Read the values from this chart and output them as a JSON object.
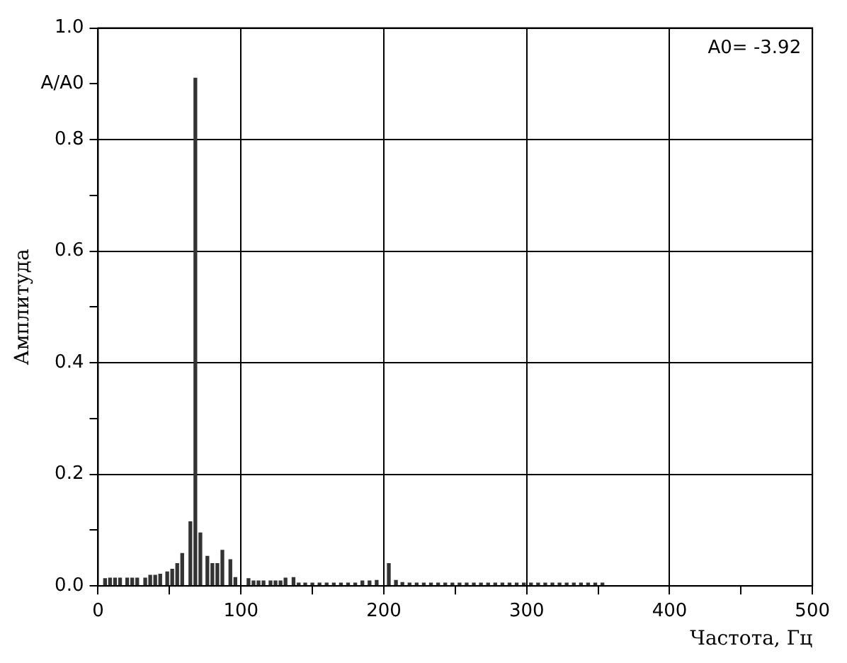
{
  "chart_data": {
    "type": "bar",
    "xlabel": "Частота, Гц",
    "ylabel": "Амплитуда",
    "annotations": [
      "A0= -3.92"
    ],
    "x": [
      4.9,
      8.4,
      11.9,
      15.4,
      20.4,
      23.9,
      27.4,
      33,
      36.5,
      40,
      43.5,
      48.4,
      51.9,
      55.4,
      58.9,
      64.6,
      68.1,
      71.6,
      76.5,
      80,
      83.5,
      87,
      92.6,
      96.1,
      105.3,
      108.8,
      112.3,
      115.8,
      120.7,
      124.2,
      127.7,
      131.2,
      136.8,
      140.4,
      145,
      150,
      155,
      160,
      165,
      170,
      175,
      180,
      185,
      190,
      195,
      203.5,
      208.5,
      213,
      218,
      223,
      228,
      233,
      238,
      243,
      248,
      253,
      258,
      263,
      268,
      273,
      278,
      283,
      288,
      293,
      298,
      303,
      308,
      313,
      318,
      323,
      328,
      333,
      338,
      343,
      348,
      353
    ],
    "series": [
      {
        "color": "#333333",
        "values": [
          0.013,
          0.014,
          0.014,
          0.014,
          0.014,
          0.014,
          0.014,
          0.014,
          0.019,
          0.019,
          0.021,
          0.025,
          0.03,
          0.04,
          0.058,
          0.115,
          0.91,
          0.095,
          0.053,
          0.04,
          0.04,
          0.064,
          0.047,
          0.015,
          0.013,
          0.009,
          0.009,
          0.009,
          0.009,
          0.009,
          0.009,
          0.014,
          0.015,
          0.005,
          0.005,
          0.005,
          0.005,
          0.005,
          0.005,
          0.005,
          0.005,
          0.005,
          0.009,
          0.009,
          0.01,
          0.04,
          0.01,
          0.006,
          0.005,
          0.005,
          0.005,
          0.005,
          0.005,
          0.005,
          0.005,
          0.005,
          0.005,
          0.005,
          0.005,
          0.005,
          0.005,
          0.005,
          0.005,
          0.005,
          0.005,
          0.005,
          0.005,
          0.005,
          0.005,
          0.005,
          0.005,
          0.005,
          0.005,
          0.005,
          0.005,
          0.005
        ]
      }
    ],
    "xlim": [
      0,
      500
    ],
    "xticks": [
      0,
      {
        "value": 50,
        "label": null
      },
      100,
      {
        "value": 150,
        "label": null
      },
      200,
      {
        "value": 250,
        "label": null
      },
      300,
      {
        "value": 350,
        "label": null
      },
      400,
      {
        "value": 450,
        "label": null
      },
      500
    ],
    "ylim": [
      0,
      1
    ],
    "yticks": [
      {
        "value": 0,
        "label": "0.0"
      },
      {
        "value": 0.1,
        "label": null
      },
      {
        "value": 0.2,
        "label": "0.2"
      },
      {
        "value": 0.3,
        "label": null
      },
      {
        "value": 0.4,
        "label": "0.4"
      },
      {
        "value": 0.5,
        "label": null
      },
      {
        "value": 0.6,
        "label": "0.6"
      },
      {
        "value": 0.7,
        "label": null
      },
      {
        "value": 0.8,
        "label": "0.8"
      },
      {
        "value": 0.9,
        "label": "A/A0"
      },
      {
        "value": 1,
        "label": "1.0"
      }
    ],
    "grid": true,
    "legend": false
  }
}
